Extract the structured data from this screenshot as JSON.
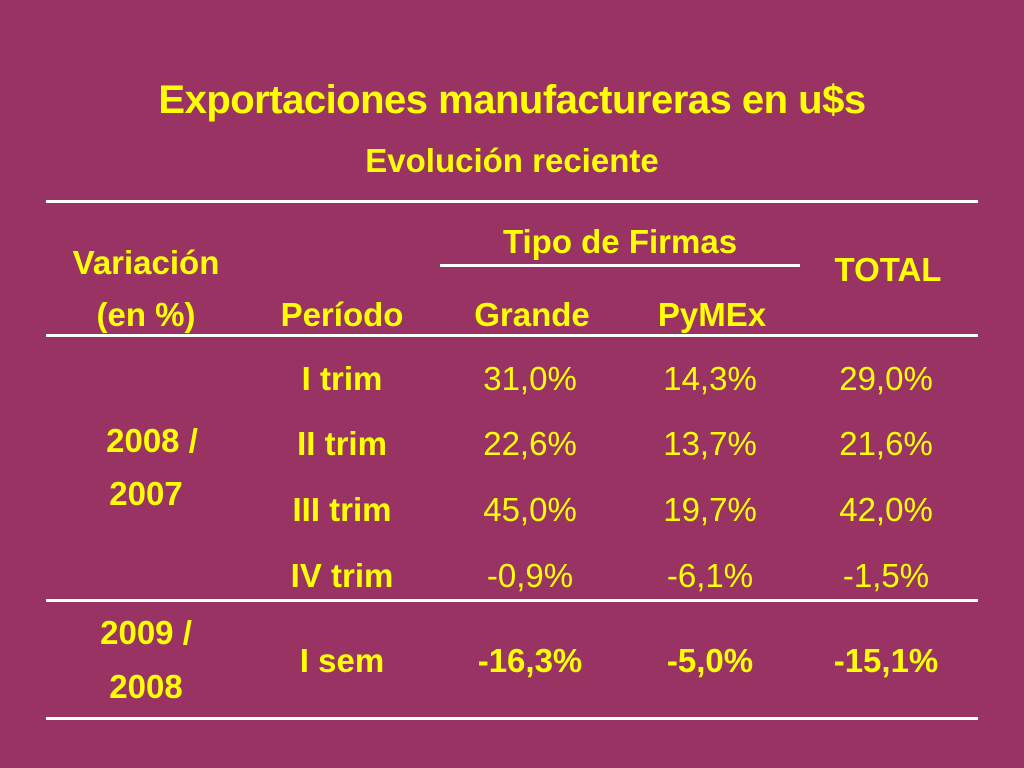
{
  "title": "Exportaciones manufactureras en u$s",
  "subtitle": "Evolución reciente",
  "header": {
    "variacion_line1": "Variación",
    "variacion_line2": "(en %)",
    "periodo": "Período",
    "tipo_firmas": "Tipo de Firmas",
    "grande": "Grande",
    "pymex": "PyMEx",
    "total": "TOTAL"
  },
  "groups": [
    {
      "label_line1": "2008 /",
      "label_line2": "2007",
      "rows": [
        {
          "periodo": "I trim",
          "grande": "31,0%",
          "pymex": "14,3%",
          "total": "29,0%"
        },
        {
          "periodo": "II trim",
          "grande": "22,6%",
          "pymex": "13,7%",
          "total": "21,6%"
        },
        {
          "periodo": "III trim",
          "grande": "45,0%",
          "pymex": "19,7%",
          "total": "42,0%"
        },
        {
          "periodo": "IV trim",
          "grande": "-0,9%",
          "pymex": "-6,1%",
          "total": "-1,5%"
        }
      ]
    },
    {
      "label_line1": "2009 /",
      "label_line2": "2008",
      "rows": [
        {
          "periodo": "I sem",
          "grande": "-16,3%",
          "pymex": "-5,0%",
          "total": "-15,1%"
        }
      ]
    }
  ],
  "colors": {
    "background": "#993363",
    "text": "#ffff00",
    "rules": "#ffffff"
  }
}
